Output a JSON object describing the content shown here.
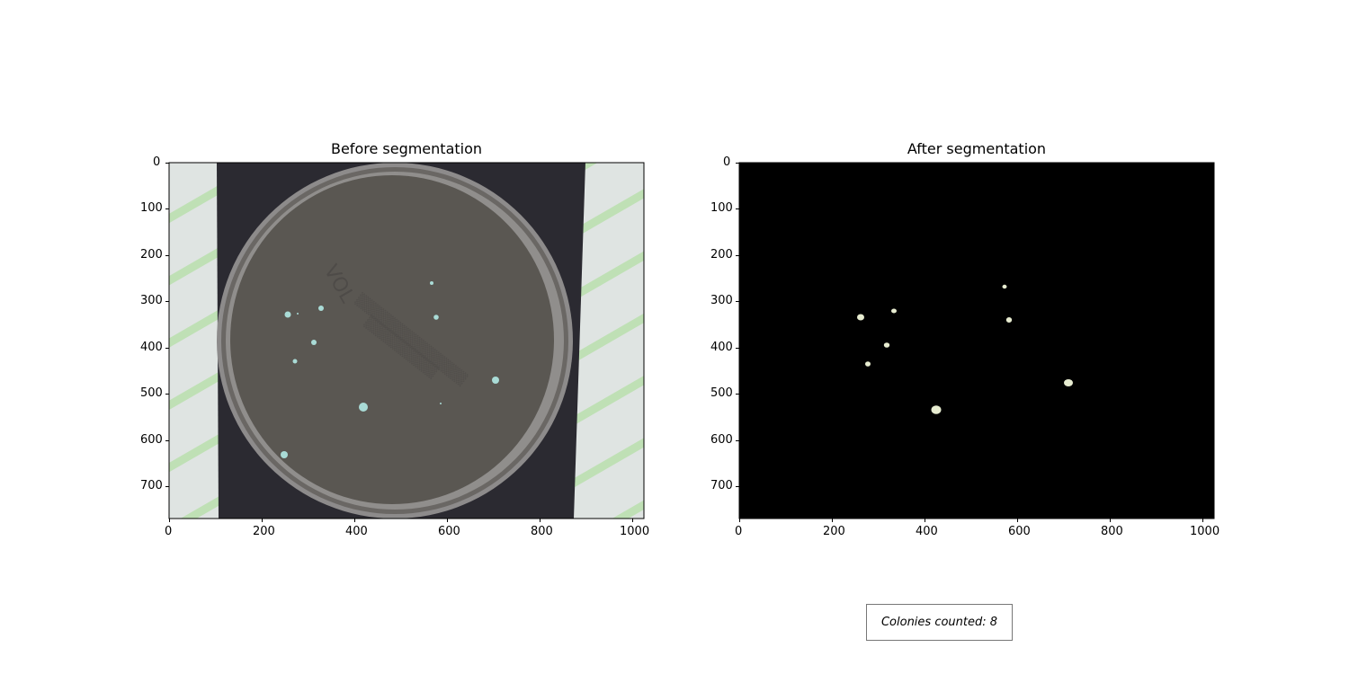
{
  "left_panel": {
    "title": "Before segmentation",
    "x_ticks": [
      "0",
      "200",
      "400",
      "600",
      "800",
      "1000"
    ],
    "y_ticks": [
      "0",
      "100",
      "200",
      "300",
      "400",
      "500",
      "600",
      "700"
    ]
  },
  "right_panel": {
    "title": "After segmentation",
    "x_ticks": [
      "0",
      "200",
      "400",
      "600",
      "800",
      "1000"
    ],
    "y_ticks": [
      "0",
      "100",
      "200",
      "300",
      "400",
      "500",
      "600",
      "700"
    ]
  },
  "caption": "Colonies counted: 8",
  "colors": {
    "background_dark": "#2b2a31",
    "agar": "#5a5752",
    "tape": "#dfe4e2",
    "tape_stripe": "#b8dcb0",
    "colony_before": "#a9dbd6",
    "colony_after": "#e7ecd0",
    "segmented_bg": "#000000"
  }
}
